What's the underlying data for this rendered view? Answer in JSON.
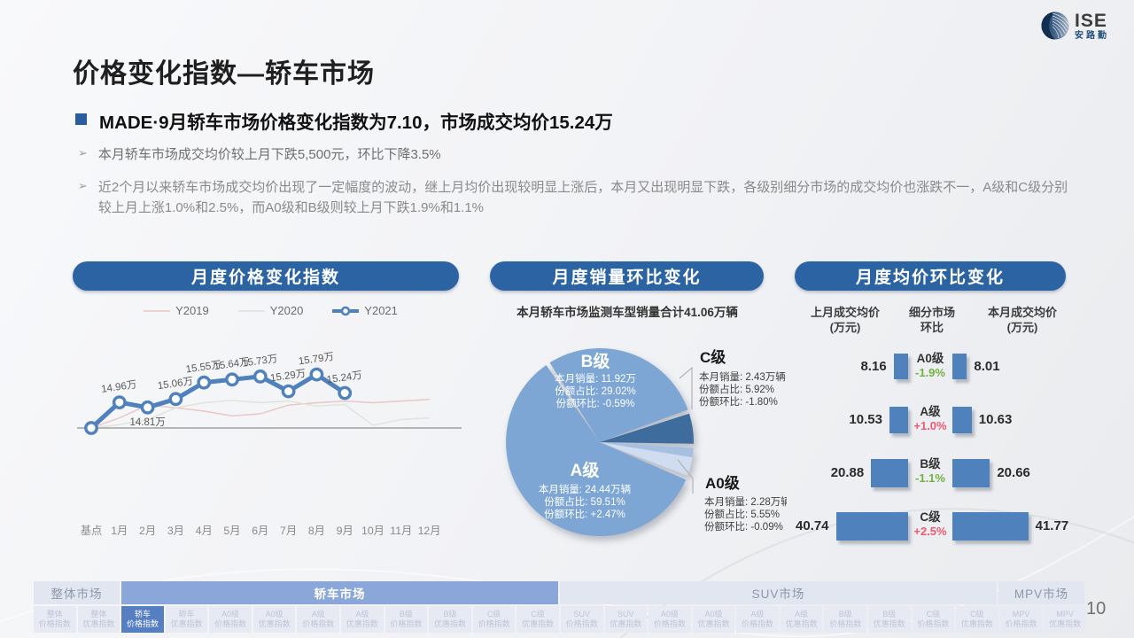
{
  "meta": {
    "page_number": "10"
  },
  "logo": {
    "name": "ISE",
    "subname": "安路勤"
  },
  "title": "价格变化指数—轿车市场",
  "headline": "MADE·9月轿车市场价格变化指数为7.10，市场成交均价15.24万",
  "bullets": [
    "本月轿车市场成交均价较上月下跌5,500元，环比下降3.5%",
    "近2个月以来轿车市场成交均价出现了一定幅度的波动，继上月均价出现较明显上涨后，本月又出现明显下跌，各级别细分市场的成交均价也涨跌不一，A级和C级分别较上月上涨1.0%和2.5%，而A0级和B级则较上月下跌1.9%和1.1%"
  ],
  "panels": {
    "left": {
      "header": "月度价格变化指数"
    },
    "middle": {
      "header": "月度销量环比变化",
      "subtitle": "本月轿车市场监测车型销量合计41.06万辆"
    },
    "right": {
      "header": "月度均价环比变化",
      "columns": [
        {
          "line1": "上月成交均价",
          "line2": "(万元)"
        },
        {
          "line1": "细分市场",
          "line2": "环比"
        },
        {
          "line1": "本月成交均价",
          "line2": "(万元)"
        }
      ]
    }
  },
  "chart_data": [
    {
      "type": "line",
      "title": "月度价格变化指数",
      "x_labels": [
        "基点",
        "1月",
        "2月",
        "3月",
        "4月",
        "5月",
        "6月",
        "7月",
        "8月",
        "9月",
        "10月",
        "11月",
        "12月"
      ],
      "unit": "万",
      "series": [
        {
          "name": "Y2019",
          "color": "#eac5c4",
          "approx": true,
          "values": [
            14.2,
            14.5,
            14.88,
            14.8,
            14.7,
            14.56,
            14.62,
            14.88,
            14.95,
            15.0,
            14.95,
            15.0,
            15.05
          ]
        },
        {
          "name": "Y2020",
          "color": "#dfe3da",
          "approx": true,
          "values": [
            14.2,
            14.3,
            14.45,
            14.8,
            14.95,
            15.02,
            14.95,
            15.0,
            14.85,
            14.9,
            14.28,
            14.45,
            14.5
          ]
        },
        {
          "name": "Y2021",
          "color": "#4f81bd",
          "values": [
            null,
            14.96,
            14.81,
            15.06,
            15.55,
            15.64,
            15.73,
            15.29,
            15.79,
            15.24,
            null,
            null,
            null
          ],
          "labels": [
            "",
            "14.96万",
            "14.81万",
            "15.06万",
            "15.55万",
            "15.64万",
            "15.73万",
            "15.29万",
            "15.79万",
            "15.24万",
            "",
            "",
            ""
          ],
          "base_point_on_axis": true,
          "label_below_indices": [
            2
          ]
        }
      ]
    },
    {
      "type": "pie",
      "title": "月度销量环比变化",
      "subtitle": "本月轿车市场监测车型销量合计41.06万辆",
      "field_labels": {
        "volume": "本月销量:",
        "share": "份额占比:",
        "mom": "份额环比:"
      },
      "start_angle_deg": -33.5,
      "slices": [
        {
          "name": "B级",
          "volume": "11.92万",
          "share": "29.02%",
          "share_pct": 29.02,
          "mom": "-0.59%",
          "color": "#7da6d4",
          "label": "inside"
        },
        {
          "name": "C级",
          "volume": "2.43万辆",
          "share": "5.92%",
          "share_pct": 5.92,
          "mom": "-1.80%",
          "color": "#3e6d9d",
          "label": "callout"
        },
        {
          "name": "A0级",
          "volume": "2.28万辆",
          "share": "5.55%",
          "share_pct": 5.55,
          "mom": "-0.09%",
          "color": "#a6c0e1",
          "color2": "#d0dcef",
          "split_fraction": 0.33,
          "label": "callout"
        },
        {
          "name": "A级",
          "volume": "24.44万辆",
          "share": "59.51%",
          "share_pct": 59.51,
          "mom": "+2.47%",
          "color": "#7da6d4",
          "label": "inside"
        }
      ]
    },
    {
      "type": "paired-bar",
      "title": "月度均价环比变化",
      "columns": [
        "上月成交均价(万元)",
        "细分市场环比",
        "本月成交均价(万元)"
      ],
      "rows": [
        {
          "segment": "A0级",
          "prev": 8.16,
          "mom": "-1.9%",
          "direction": "down",
          "curr": 8.01
        },
        {
          "segment": "A级",
          "prev": 10.53,
          "mom": "+1.0%",
          "direction": "up",
          "curr": 10.63
        },
        {
          "segment": "B级",
          "prev": 20.88,
          "mom": "-1.1%",
          "direction": "down",
          "curr": 20.66
        },
        {
          "segment": "C级",
          "prev": 40.74,
          "mom": "+2.5%",
          "direction": "up",
          "curr": 41.77
        }
      ],
      "colors": {
        "bar": "#4f81bd",
        "up": "#ee5a71",
        "down": "#74b044"
      }
    }
  ],
  "bottom_nav": {
    "groups": [
      {
        "label": "整体市场",
        "selected": false,
        "span": 2
      },
      {
        "label": "轿车市场",
        "selected": true,
        "span": 10
      },
      {
        "label": "SUV市场",
        "selected": false,
        "span": 10
      },
      {
        "label": "MPV市场",
        "selected": false,
        "span": 2
      }
    ],
    "tabs": [
      {
        "line1": "整体",
        "line2": "价格指数",
        "selected": false
      },
      {
        "line1": "整体",
        "line2": "优惠指数",
        "selected": false
      },
      {
        "line1": "轿车",
        "line2": "价格指数",
        "selected": true
      },
      {
        "line1": "轿车",
        "line2": "优惠指数",
        "selected": false
      },
      {
        "line1": "A0级",
        "line2": "价格指数",
        "selected": false
      },
      {
        "line1": "A0级",
        "line2": "优惠指数",
        "selected": false
      },
      {
        "line1": "A级",
        "line2": "价格指数",
        "selected": false
      },
      {
        "line1": "A级",
        "line2": "优惠指数",
        "selected": false
      },
      {
        "line1": "B级",
        "line2": "价格指数",
        "selected": false
      },
      {
        "line1": "B级",
        "line2": "优惠指数",
        "selected": false
      },
      {
        "line1": "C级",
        "line2": "价格指数",
        "selected": false
      },
      {
        "line1": "C级",
        "line2": "优惠指数",
        "selected": false
      },
      {
        "line1": "SUV",
        "line2": "价格指数",
        "selected": false
      },
      {
        "line1": "SUV",
        "line2": "优惠指数",
        "selected": false
      },
      {
        "line1": "A0级",
        "line2": "价格指数",
        "selected": false
      },
      {
        "line1": "A0级",
        "line2": "优惠指数",
        "selected": false
      },
      {
        "line1": "A级",
        "line2": "价格指数",
        "selected": false
      },
      {
        "line1": "A级",
        "line2": "优惠指数",
        "selected": false
      },
      {
        "line1": "B级",
        "line2": "价格指数",
        "selected": false
      },
      {
        "line1": "B级",
        "line2": "优惠指数",
        "selected": false
      },
      {
        "line1": "C级",
        "line2": "价格指数",
        "selected": false
      },
      {
        "line1": "C级",
        "line2": "优惠指数",
        "selected": false
      },
      {
        "line1": "MPV",
        "line2": "价格指数",
        "selected": false
      },
      {
        "line1": "MPV",
        "line2": "优惠指数",
        "selected": false
      }
    ]
  }
}
